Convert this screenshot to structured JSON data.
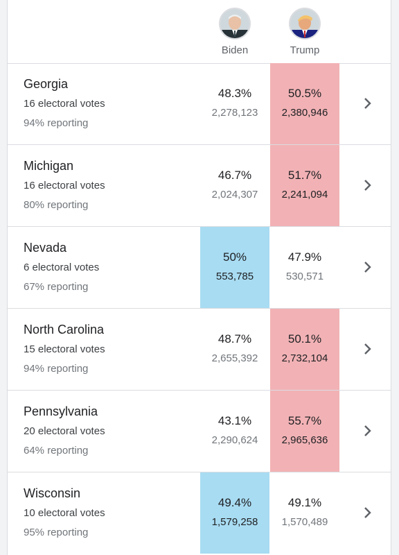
{
  "candidates": {
    "biden": {
      "name": "Biden",
      "color": "#a8dcf2"
    },
    "trump": {
      "name": "Trump",
      "color": "#f2b2b5"
    }
  },
  "states": [
    {
      "name": "Georgia",
      "electoral_votes": "16 electoral votes",
      "reporting": "94% reporting",
      "biden_pct": "48.3%",
      "biden_votes": "2,278,123",
      "trump_pct": "50.5%",
      "trump_votes": "2,380,946",
      "leader": "trump"
    },
    {
      "name": "Michigan",
      "electoral_votes": "16 electoral votes",
      "reporting": "80% reporting",
      "biden_pct": "46.7%",
      "biden_votes": "2,024,307",
      "trump_pct": "51.7%",
      "trump_votes": "2,241,094",
      "leader": "trump"
    },
    {
      "name": "Nevada",
      "electoral_votes": "6 electoral votes",
      "reporting": "67% reporting",
      "biden_pct": "50%",
      "biden_votes": "553,785",
      "trump_pct": "47.9%",
      "trump_votes": "530,571",
      "leader": "biden"
    },
    {
      "name": "North Carolina",
      "electoral_votes": "15 electoral votes",
      "reporting": "94% reporting",
      "biden_pct": "48.7%",
      "biden_votes": "2,655,392",
      "trump_pct": "50.1%",
      "trump_votes": "2,732,104",
      "leader": "trump"
    },
    {
      "name": "Pennsylvania",
      "electoral_votes": "20 electoral votes",
      "reporting": "64% reporting",
      "biden_pct": "43.1%",
      "biden_votes": "2,290,624",
      "trump_pct": "55.7%",
      "trump_votes": "2,965,636",
      "leader": "trump"
    },
    {
      "name": "Wisconsin",
      "electoral_votes": "10 electoral votes",
      "reporting": "95% reporting",
      "biden_pct": "49.4%",
      "biden_votes": "1,579,258",
      "trump_pct": "49.1%",
      "trump_votes": "1,570,489",
      "leader": "biden"
    }
  ]
}
